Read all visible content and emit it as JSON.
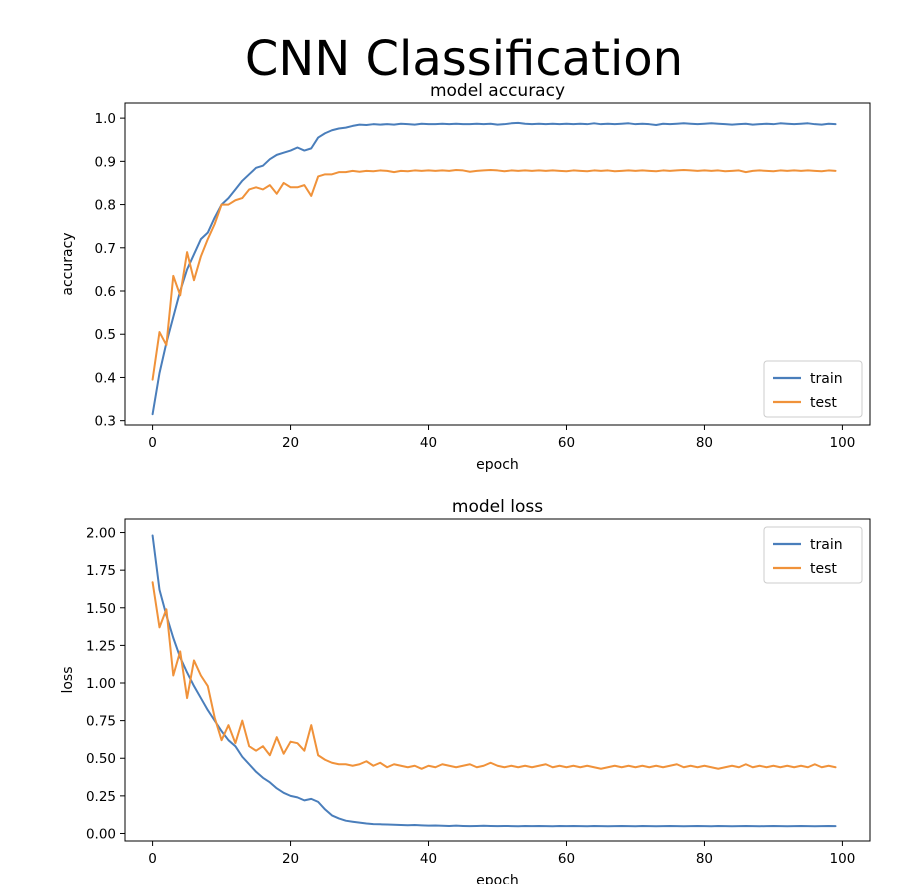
{
  "figure": {
    "suptitle": "CNN Classification"
  },
  "colors": {
    "train": "#4a7ebb",
    "test": "#f0923a"
  },
  "chart_data": [
    {
      "type": "line",
      "title": "model accuracy",
      "xlabel": "epoch",
      "ylabel": "accuracy",
      "xlim": [
        -4,
        104
      ],
      "ylim": [
        0.29,
        1.035
      ],
      "xticks": [
        0,
        20,
        40,
        60,
        80,
        100
      ],
      "yticks": [
        0.3,
        0.4,
        0.5,
        0.6,
        0.7,
        0.8,
        0.9,
        1.0
      ],
      "ytick_labels": [
        "0.3",
        "0.4",
        "0.5",
        "0.6",
        "0.7",
        "0.8",
        "0.9",
        "1.0"
      ],
      "legend": "bottom-right",
      "grid": false,
      "series": [
        {
          "name": "train",
          "color": "#4a7ebb",
          "values": [
            0.315,
            0.41,
            0.48,
            0.54,
            0.6,
            0.65,
            0.685,
            0.72,
            0.735,
            0.77,
            0.8,
            0.815,
            0.835,
            0.855,
            0.87,
            0.885,
            0.89,
            0.905,
            0.915,
            0.92,
            0.925,
            0.932,
            0.925,
            0.93,
            0.955,
            0.965,
            0.972,
            0.976,
            0.978,
            0.982,
            0.985,
            0.984,
            0.986,
            0.985,
            0.986,
            0.985,
            0.987,
            0.986,
            0.985,
            0.987,
            0.986,
            0.986,
            0.987,
            0.986,
            0.987,
            0.986,
            0.986,
            0.987,
            0.986,
            0.987,
            0.985,
            0.986,
            0.988,
            0.989,
            0.987,
            0.986,
            0.987,
            0.986,
            0.987,
            0.986,
            0.987,
            0.986,
            0.987,
            0.986,
            0.988,
            0.986,
            0.987,
            0.986,
            0.987,
            0.988,
            0.986,
            0.987,
            0.986,
            0.984,
            0.987,
            0.986,
            0.987,
            0.988,
            0.987,
            0.986,
            0.987,
            0.988,
            0.987,
            0.986,
            0.985,
            0.986,
            0.987,
            0.985,
            0.986,
            0.987,
            0.986,
            0.988,
            0.987,
            0.986,
            0.987,
            0.988,
            0.986,
            0.985,
            0.987,
            0.986
          ]
        },
        {
          "name": "test",
          "color": "#f0923a",
          "values": [
            0.395,
            0.505,
            0.475,
            0.635,
            0.59,
            0.69,
            0.625,
            0.68,
            0.72,
            0.755,
            0.8,
            0.8,
            0.81,
            0.815,
            0.835,
            0.84,
            0.835,
            0.845,
            0.825,
            0.85,
            0.84,
            0.84,
            0.845,
            0.82,
            0.865,
            0.87,
            0.87,
            0.875,
            0.875,
            0.878,
            0.876,
            0.878,
            0.877,
            0.879,
            0.878,
            0.875,
            0.878,
            0.877,
            0.879,
            0.878,
            0.879,
            0.878,
            0.879,
            0.878,
            0.88,
            0.879,
            0.876,
            0.878,
            0.879,
            0.88,
            0.879,
            0.877,
            0.879,
            0.878,
            0.879,
            0.878,
            0.879,
            0.878,
            0.879,
            0.878,
            0.877,
            0.879,
            0.878,
            0.877,
            0.879,
            0.878,
            0.879,
            0.877,
            0.878,
            0.879,
            0.878,
            0.879,
            0.878,
            0.877,
            0.879,
            0.878,
            0.879,
            0.88,
            0.879,
            0.878,
            0.879,
            0.878,
            0.879,
            0.877,
            0.878,
            0.879,
            0.875,
            0.878,
            0.879,
            0.878,
            0.877,
            0.879,
            0.878,
            0.879,
            0.878,
            0.879,
            0.878,
            0.877,
            0.879,
            0.878
          ]
        }
      ]
    },
    {
      "type": "line",
      "title": "model loss",
      "xlabel": "epoch",
      "ylabel": "loss",
      "xlim": [
        -4,
        104
      ],
      "ylim": [
        -0.05,
        2.09
      ],
      "xticks": [
        0,
        20,
        40,
        60,
        80,
        100
      ],
      "yticks": [
        0.0,
        0.25,
        0.5,
        0.75,
        1.0,
        1.25,
        1.5,
        1.75,
        2.0
      ],
      "ytick_labels": [
        "0.00",
        "0.25",
        "0.50",
        "0.75",
        "1.00",
        "1.25",
        "1.50",
        "1.75",
        "2.00"
      ],
      "legend": "top-right",
      "grid": false,
      "series": [
        {
          "name": "train",
          "color": "#4a7ebb",
          "values": [
            1.98,
            1.62,
            1.45,
            1.3,
            1.17,
            1.07,
            0.98,
            0.9,
            0.82,
            0.75,
            0.68,
            0.62,
            0.58,
            0.51,
            0.46,
            0.41,
            0.37,
            0.34,
            0.3,
            0.27,
            0.25,
            0.24,
            0.22,
            0.23,
            0.21,
            0.16,
            0.12,
            0.1,
            0.085,
            0.078,
            0.072,
            0.066,
            0.062,
            0.061,
            0.06,
            0.058,
            0.056,
            0.055,
            0.056,
            0.054,
            0.052,
            0.053,
            0.051,
            0.05,
            0.052,
            0.05,
            0.049,
            0.05,
            0.051,
            0.05,
            0.049,
            0.05,
            0.049,
            0.048,
            0.05,
            0.049,
            0.05,
            0.049,
            0.048,
            0.05,
            0.049,
            0.05,
            0.049,
            0.048,
            0.05,
            0.049,
            0.048,
            0.049,
            0.05,
            0.049,
            0.048,
            0.05,
            0.049,
            0.048,
            0.049,
            0.05,
            0.049,
            0.048,
            0.049,
            0.05,
            0.049,
            0.048,
            0.05,
            0.049,
            0.048,
            0.049,
            0.05,
            0.049,
            0.048,
            0.049,
            0.05,
            0.049,
            0.048,
            0.049,
            0.05,
            0.049,
            0.048,
            0.049,
            0.05,
            0.049
          ]
        },
        {
          "name": "test",
          "color": "#f0923a",
          "values": [
            1.67,
            1.37,
            1.49,
            1.05,
            1.21,
            0.9,
            1.15,
            1.05,
            0.98,
            0.77,
            0.62,
            0.72,
            0.6,
            0.75,
            0.58,
            0.55,
            0.58,
            0.52,
            0.64,
            0.53,
            0.61,
            0.6,
            0.55,
            0.72,
            0.52,
            0.49,
            0.47,
            0.46,
            0.46,
            0.45,
            0.46,
            0.48,
            0.45,
            0.47,
            0.44,
            0.46,
            0.45,
            0.44,
            0.45,
            0.43,
            0.45,
            0.44,
            0.46,
            0.45,
            0.44,
            0.45,
            0.46,
            0.44,
            0.45,
            0.47,
            0.45,
            0.44,
            0.45,
            0.44,
            0.45,
            0.44,
            0.45,
            0.46,
            0.44,
            0.45,
            0.44,
            0.45,
            0.44,
            0.45,
            0.44,
            0.43,
            0.44,
            0.45,
            0.44,
            0.45,
            0.44,
            0.45,
            0.44,
            0.45,
            0.44,
            0.45,
            0.46,
            0.44,
            0.45,
            0.44,
            0.45,
            0.44,
            0.43,
            0.44,
            0.45,
            0.44,
            0.46,
            0.44,
            0.45,
            0.44,
            0.45,
            0.44,
            0.45,
            0.44,
            0.45,
            0.44,
            0.46,
            0.44,
            0.45,
            0.44
          ]
        }
      ]
    }
  ]
}
